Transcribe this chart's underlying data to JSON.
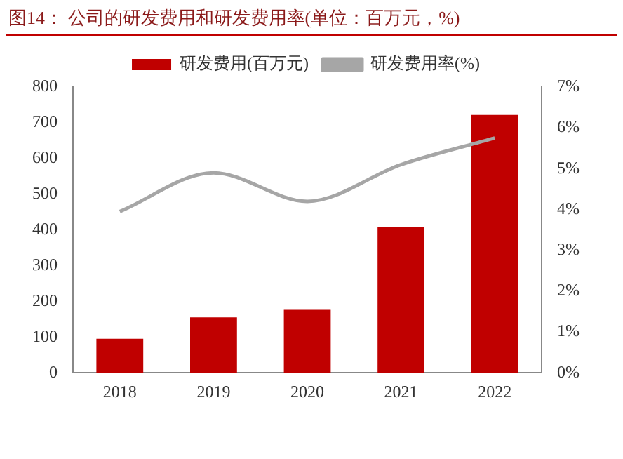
{
  "chart_data": {
    "type": "bar",
    "title": "图14：  公司的研发费用和研发费用率(单位：百万元，%)",
    "categories": [
      "2018",
      "2019",
      "2020",
      "2021",
      "2022"
    ],
    "series": [
      {
        "name": "研发费用(百万元)",
        "color": "#c00000",
        "values": [
          95,
          155,
          178,
          408,
          722
        ]
      },
      {
        "name": "研发费用率(%)",
        "type": "line",
        "axis": "y2",
        "color": "#a6a6a6",
        "values": [
          3.95,
          4.9,
          4.2,
          5.1,
          5.75
        ]
      }
    ],
    "ylim": [
      0,
      800
    ],
    "yticks": [
      0,
      100,
      200,
      300,
      400,
      500,
      600,
      700,
      800
    ],
    "y2lim": [
      0,
      7
    ],
    "y2ticks": [
      {
        "value": 0,
        "label": "0%"
      },
      {
        "value": 1,
        "label": "1%"
      },
      {
        "value": 2,
        "label": "2%"
      },
      {
        "value": 3,
        "label": "3%"
      },
      {
        "value": 4,
        "label": "4%"
      },
      {
        "value": 5,
        "label": "5%"
      },
      {
        "value": 6,
        "label": "6%"
      },
      {
        "value": 7,
        "label": "7%"
      }
    ],
    "legend": "top",
    "grid": false,
    "marker": "none"
  }
}
